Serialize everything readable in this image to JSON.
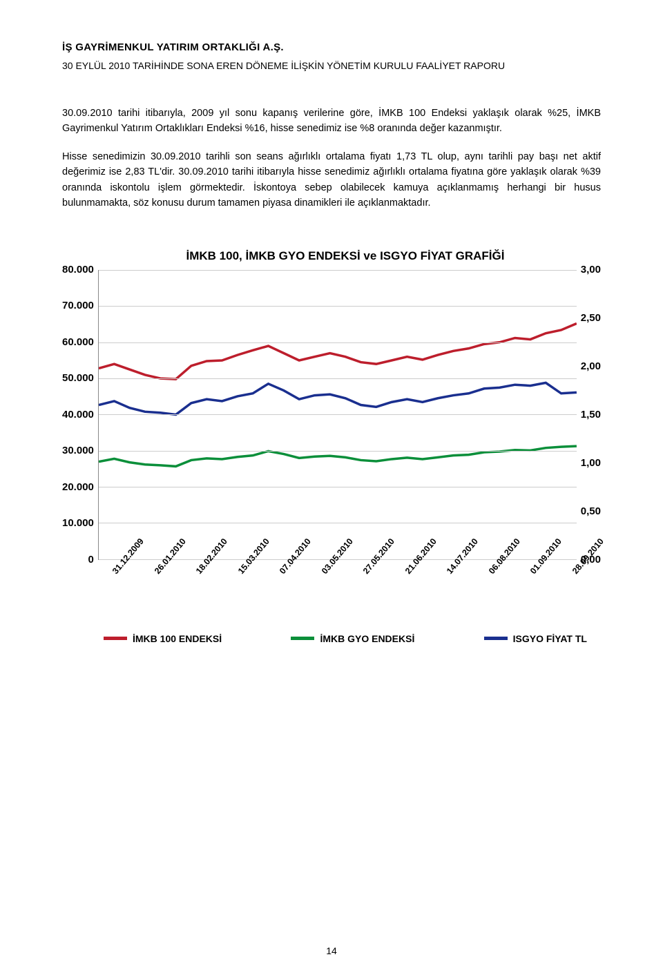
{
  "header": {
    "title": "İŞ GAYRİMENKUL YATIRIM ORTAKLIĞI A.Ş.",
    "subtitle": "30 EYLÜL 2010 TARİHİNDE SONA EREN DÖNEME İLİŞKİN YÖNETİM KURULU FAALİYET RAPORU"
  },
  "paragraphs": {
    "p1": "30.09.2010 tarihi itibarıyla, 2009 yıl sonu kapanış verilerine göre, İMKB 100 Endeksi yaklaşık olarak %25, İMKB Gayrimenkul Yatırım Ortaklıkları Endeksi %16, hisse senedimiz ise %8 oranında değer kazanmıştır.",
    "p2": "Hisse senedimizin 30.09.2010 tarihli son seans ağırlıklı ortalama fiyatı 1,73 TL olup, aynı tarihli pay başı net aktif değerimiz ise 2,83 TL'dir. 30.09.2010 tarihi itibarıyla hisse senedimiz ağırlıklı ortalama fiyatına göre yaklaşık olarak %39 oranında iskontolu işlem görmektedir. İskontoya sebep olabilecek kamuya açıklanmamış herhangi bir husus bulunmamakta, söz konusu durum tamamen piyasa dinamikleri ile açıklanmaktadır."
  },
  "chart": {
    "title": "İMKB 100, İMKB GYO ENDEKSİ ve ISGYO FİYAT GRAFİĞİ",
    "type": "line",
    "background_color": "#ffffff",
    "grid_color": "#cccccc",
    "y_left": {
      "min": 0,
      "max": 80000,
      "step": 10000,
      "labels": [
        "80.000",
        "70.000",
        "60.000",
        "50.000",
        "40.000",
        "30.000",
        "20.000",
        "10.000",
        "0"
      ]
    },
    "y_right": {
      "min": 0,
      "max": 3.0,
      "step": 0.5,
      "labels": [
        "3,00",
        "2,50",
        "2,00",
        "1,50",
        "1,00",
        "0,50",
        "0,00"
      ]
    },
    "x_labels": [
      "31.12.2009",
      "26.01.2010",
      "18.02.2010",
      "15.03.2010",
      "07.04.2010",
      "03.05.2010",
      "27.05.2010",
      "21.06.2010",
      "14.07.2010",
      "06.08.2010",
      "01.09.2010",
      "28.09.2010"
    ],
    "series": [
      {
        "name": "İMKB 100 ENDEKSİ",
        "color": "#bd1e2c",
        "axis": "left",
        "line_width": 3.5,
        "data": [
          52800,
          54000,
          52500,
          51000,
          50000,
          49800,
          53500,
          54800,
          55000,
          56500,
          57800,
          59000,
          57000,
          55000,
          56000,
          57000,
          56000,
          54500,
          54000,
          55000,
          56000,
          55200,
          56500,
          57600,
          58300,
          59500,
          60000,
          61200,
          60800,
          62500,
          63400,
          65200
        ]
      },
      {
        "name": "İMKB GYO ENDEKSİ",
        "color": "#0b8f3a",
        "axis": "left",
        "line_width": 3.5,
        "data": [
          27000,
          27800,
          26800,
          26200,
          26000,
          25700,
          27400,
          27900,
          27700,
          28300,
          28700,
          29900,
          29100,
          28000,
          28400,
          28600,
          28200,
          27400,
          27100,
          27700,
          28100,
          27700,
          28200,
          28700,
          28900,
          29600,
          29800,
          30200,
          30100,
          30800,
          31100,
          31300
        ]
      },
      {
        "name": "ISGYO FİYAT TL",
        "color": "#1a2f8f",
        "axis": "right",
        "line_width": 3.5,
        "data": [
          1.6,
          1.64,
          1.57,
          1.53,
          1.52,
          1.5,
          1.62,
          1.66,
          1.64,
          1.69,
          1.72,
          1.82,
          1.75,
          1.66,
          1.7,
          1.71,
          1.67,
          1.6,
          1.58,
          1.63,
          1.66,
          1.63,
          1.67,
          1.7,
          1.72,
          1.77,
          1.78,
          1.81,
          1.8,
          1.83,
          1.72,
          1.73
        ]
      }
    ],
    "legend": [
      {
        "label": "İMKB 100 ENDEKSİ",
        "color": "#bd1e2c"
      },
      {
        "label": "İMKB GYO ENDEKSİ",
        "color": "#0b8f3a"
      },
      {
        "label": "ISGYO FİYAT TL",
        "color": "#1a2f8f"
      }
    ]
  },
  "page_number": "14"
}
